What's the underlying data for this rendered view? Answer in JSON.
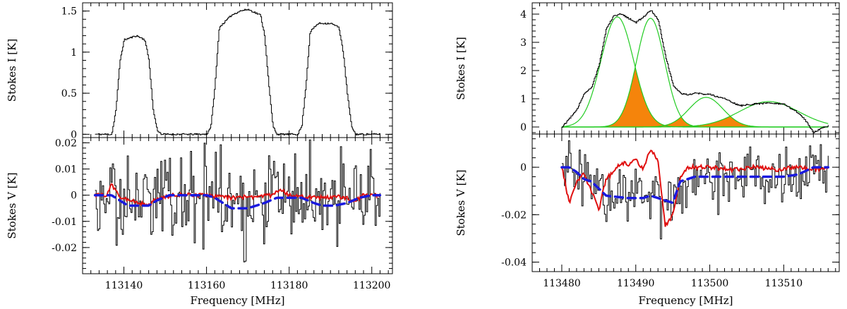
{
  "colors": {
    "axis": "#000000",
    "stokes_i": "#000000",
    "stokes_v": "#000000",
    "red_model": "#e01010",
    "blue_model": "#1a1adf",
    "gauss": "#22cc22",
    "fill": "#f5840b"
  },
  "chart_data": [
    {
      "type": "line",
      "title": "",
      "xlabel": "Frequency [MHz]",
      "xlim": [
        113130,
        113205
      ],
      "xticks": [
        "113140",
        "113160",
        "113180",
        "113200"
      ],
      "top": {
        "ylabel": "Stokes I [K]",
        "ylim": [
          -0.04,
          1.6
        ],
        "yticks": [
          "0",
          "0.5",
          "1",
          "1.5"
        ],
        "series": [
          {
            "name": "Stokes I",
            "x": [
              113133,
              113137,
              113138,
              113139,
              113140,
              113143,
              113145,
              113146,
              113147,
              113148,
              113149,
              113160,
              113161,
              113162,
              113163,
              113166,
              113168,
              113170,
              113173,
              113174,
              113175,
              113176,
              113177,
              113182,
              113183,
              113184,
              113185,
              113187,
              113190,
              113192,
              113193,
              113194,
              113195,
              113196,
              113202
            ],
            "y": [
              0,
              0,
              0.3,
              0.9,
              1.15,
              1.2,
              1.15,
              0.9,
              0.3,
              0.05,
              0,
              0,
              0.1,
              0.6,
              1.3,
              1.45,
              1.5,
              1.52,
              1.45,
              1.2,
              0.6,
              0.1,
              0,
              0,
              0.1,
              0.6,
              1.25,
              1.35,
              1.35,
              1.3,
              1.0,
              0.5,
              0.1,
              0,
              0
            ]
          }
        ]
      },
      "bottom": {
        "ylabel": "Stokes V [K]",
        "ylim": [
          -0.03,
          0.022
        ],
        "yticks": [
          "0.02",
          "0.01",
          "0",
          "-0.01",
          "-0.02"
        ],
        "noise_sigma": 0.009,
        "series": [
          {
            "name": "Stokes V",
            "x_range": [
              113133,
              113202
            ],
            "points": 230
          },
          {
            "name": "model (red)",
            "x": [
              113133,
              113136,
              113137,
              113139,
              113141,
              113144,
              113146,
              113148,
              113150,
              113152,
              113160,
              113162,
              113166,
              113172,
              113176,
              113178,
              113180,
              113183,
              113186,
              113192,
              113196,
              113198,
              113202
            ],
            "y": [
              0,
              0,
              0.004,
              -0.0005,
              -0.002,
              -0.003,
              -0.004,
              -0.001,
              -0.0005,
              0,
              0,
              -0.0005,
              -0.001,
              -0.0005,
              0,
              0.002,
              0,
              -0.0005,
              -0.001,
              -0.0005,
              -0.002,
              0,
              0
            ]
          },
          {
            "name": "fit (blue)",
            "x": [
              113133,
              113137,
              113139,
              113141,
              113146,
              113148,
              113151,
              113160,
              113162,
              113164,
              113166,
              113170,
              113174,
              113177,
              113183,
              113186,
              113188,
              113191,
              113194,
              113197,
              113200,
              113202
            ],
            "y": [
              0,
              0,
              -0.002,
              -0.004,
              -0.004,
              -0.002,
              0,
              0,
              -0.001,
              -0.003,
              -0.005,
              -0.005,
              -0.003,
              -0.001,
              -0.001,
              -0.003,
              -0.004,
              -0.004,
              -0.003,
              -0.001,
              0,
              0
            ]
          }
        ]
      }
    },
    {
      "type": "line",
      "title": "",
      "xlabel": "Frequency [MHz]",
      "xlim": [
        113476,
        113517.5
      ],
      "xticks": [
        "113480",
        "113490",
        "113500",
        "113510"
      ],
      "top": {
        "ylabel": "Stokes I [K]",
        "ylim": [
          -0.25,
          4.4
        ],
        "yticks": [
          "0",
          "1",
          "2",
          "3",
          "4"
        ],
        "series": [
          {
            "name": "Stokes I",
            "x": [
              113480,
              113482,
              113483,
              113484,
              113485,
              113486,
              113487,
              113488,
              113489,
              113490,
              113491,
              113492,
              113493,
              113494,
              113495,
              113496,
              113497,
              113498,
              113500,
              113502,
              113504,
              113506,
              113508,
              113510,
              113512,
              113513,
              113514,
              113515,
              113516
            ],
            "y": [
              0,
              0.6,
              1.2,
              1.4,
              2.2,
              3.5,
              3.95,
              4.0,
              3.85,
              3.7,
              3.9,
              4.15,
              3.8,
              2.5,
              1.5,
              1.2,
              1.15,
              1.2,
              1.15,
              1.0,
              0.75,
              0.82,
              0.85,
              0.8,
              0.5,
              0.2,
              -0.2,
              -0.05,
              0.05
            ]
          }
        ],
        "gaussians": [
          {
            "name": "component 1",
            "center": 113487.5,
            "amp": 3.9,
            "sigma": 2.2
          },
          {
            "name": "component 2",
            "center": 113492.0,
            "amp": 3.85,
            "sigma": 1.9
          },
          {
            "name": "component 3",
            "center": 113499.5,
            "amp": 1.05,
            "sigma": 2.3
          },
          {
            "name": "component 4",
            "center": 113508.0,
            "amp": 0.9,
            "sigma": 4.0
          }
        ]
      },
      "bottom": {
        "ylabel": "Stokes V [K]",
        "ylim": [
          -0.044,
          0.014
        ],
        "yticks": [
          "0",
          "-0.02",
          "-0.04"
        ],
        "noise_sigma": 0.007,
        "series": [
          {
            "name": "Stokes V",
            "x_range": [
              113480,
              113516
            ],
            "points": 200
          },
          {
            "name": "model (red)",
            "x": [
              113480,
              113481,
              113482,
              113483,
              113484,
              113485,
              113486,
              113487,
              113488,
              113489,
              113490,
              113491,
              113492,
              113493,
              113494,
              113495,
              113496,
              113497,
              113500,
              113503,
              113506,
              113509,
              113512,
              113514,
              113516
            ],
            "y": [
              0,
              -0.015,
              -0.006,
              -0.003,
              -0.01,
              -0.018,
              -0.005,
              -0.002,
              0.002,
              0.001,
              0.003,
              -0.001,
              0.008,
              0.002,
              -0.025,
              -0.02,
              -0.005,
              0,
              0,
              -0.001,
              0,
              -0.001,
              0,
              -0.001,
              0
            ]
          },
          {
            "name": "fit (blue)",
            "x": [
              113480,
              113481,
              113482,
              113483,
              113484,
              113485,
              113486,
              113489,
              113491,
              113492,
              113493,
              113494,
              113495,
              113496,
              113498,
              113502,
              113506,
              113510,
              113512,
              113514,
              113516
            ],
            "y": [
              0,
              0,
              -0.002,
              -0.005,
              -0.006,
              -0.009,
              -0.012,
              -0.013,
              -0.013,
              -0.012,
              -0.013,
              -0.014,
              -0.015,
              -0.006,
              -0.004,
              -0.004,
              -0.004,
              -0.004,
              -0.003,
              0,
              0
            ]
          }
        ]
      }
    }
  ]
}
